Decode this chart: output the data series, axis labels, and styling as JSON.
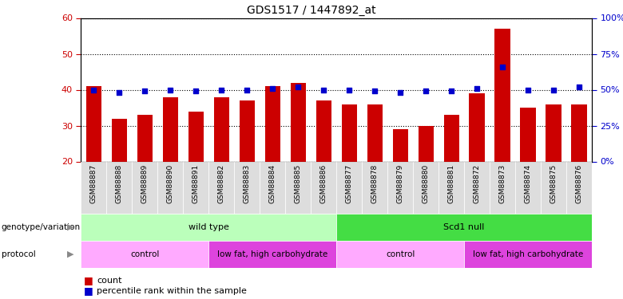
{
  "title": "GDS1517 / 1447892_at",
  "samples": [
    "GSM88887",
    "GSM88888",
    "GSM88889",
    "GSM88890",
    "GSM88891",
    "GSM88882",
    "GSM88883",
    "GSM88884",
    "GSM88885",
    "GSM88886",
    "GSM88877",
    "GSM88878",
    "GSM88879",
    "GSM88880",
    "GSM88881",
    "GSM88872",
    "GSM88873",
    "GSM88874",
    "GSM88875",
    "GSM88876"
  ],
  "counts": [
    41,
    32,
    33,
    38,
    34,
    38,
    37,
    41,
    42,
    37,
    36,
    36,
    29,
    30,
    33,
    39,
    57,
    35,
    36,
    36
  ],
  "percentiles": [
    50,
    48,
    49,
    50,
    49,
    50,
    50,
    51,
    52,
    50,
    50,
    49,
    48,
    49,
    49,
    51,
    66,
    50,
    50,
    52
  ],
  "ymin": 20,
  "ymax": 60,
  "yticks": [
    20,
    30,
    40,
    50,
    60
  ],
  "y2min": 0,
  "y2max": 100,
  "y2ticks": [
    0,
    25,
    50,
    75,
    100
  ],
  "bar_color": "#cc0000",
  "dot_color": "#0000cc",
  "genotype_groups": [
    {
      "label": "wild type",
      "start": 0,
      "end": 9,
      "color": "#bbffbb"
    },
    {
      "label": "Scd1 null",
      "start": 10,
      "end": 19,
      "color": "#44dd44"
    }
  ],
  "protocol_groups": [
    {
      "label": "control",
      "start": 0,
      "end": 4,
      "color": "#ffaaff"
    },
    {
      "label": "low fat, high carbohydrate",
      "start": 5,
      "end": 9,
      "color": "#dd44dd"
    },
    {
      "label": "control",
      "start": 10,
      "end": 14,
      "color": "#ffaaff"
    },
    {
      "label": "low fat, high carbohydrate",
      "start": 15,
      "end": 19,
      "color": "#dd44dd"
    }
  ],
  "legend_count_color": "#cc0000",
  "legend_dot_color": "#0000cc",
  "bg_color": "#ffffff",
  "plot_bg_color": "#ffffff",
  "tick_bg_color": "#dddddd",
  "grid_color": "#000000",
  "title_color": "#000000",
  "left_label_color": "#cc0000",
  "right_label_color": "#0000cc"
}
